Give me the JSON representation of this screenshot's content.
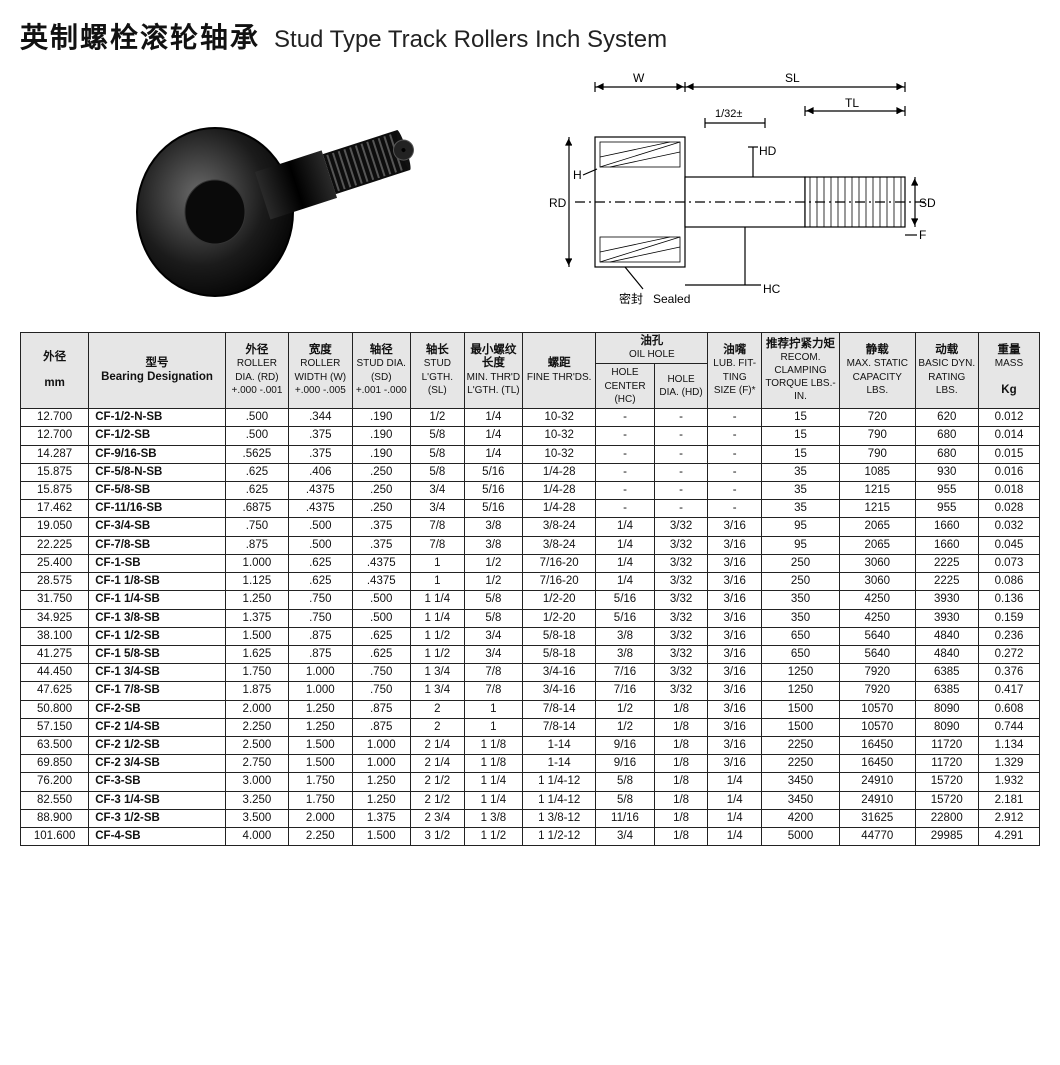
{
  "title": {
    "cn": "英制螺栓滚轮轴承",
    "en": "Stud Type Track Rollers Inch System"
  },
  "diagram_labels": [
    "W",
    "SL",
    "TL",
    "1/32±",
    "H",
    "RD",
    "HD",
    "SD",
    "F",
    "HC",
    "Sealed",
    "密封"
  ],
  "headers": {
    "mm": {
      "cn": "外径",
      "en": "mm"
    },
    "des": {
      "cn": "型号",
      "en": "Bearing Designation"
    },
    "rd": {
      "cn": "外径",
      "en": "ROLLER DIA. (RD)",
      "tol": "+.000\n-.001"
    },
    "w": {
      "cn": "宽度",
      "en": "ROLLER WIDTH (W)",
      "tol": "+.000\n-.005"
    },
    "sd": {
      "cn": "轴径",
      "en": "STUD DIA. (SD)",
      "tol": "+.001\n-.000"
    },
    "sl": {
      "cn": "轴长",
      "en": "STUD L'GTH. (SL)"
    },
    "tl": {
      "cn": "最小螺纹长度",
      "en": "MIN. THR'D L'GTH. (TL)"
    },
    "ft": {
      "cn": "螺距",
      "en": "FINE THR'DS."
    },
    "oil": {
      "cn": "油孔",
      "en": "OIL HOLE"
    },
    "hc": {
      "en": "HOLE CENTER (HC)"
    },
    "hd": {
      "en": "HOLE DIA. (HD)"
    },
    "f": {
      "cn": "油嘴",
      "en": "LUB. FIT- TING SIZE (F)*"
    },
    "tq": {
      "cn": "推荐拧紧力矩",
      "en": "RECOM. CLAMPING TORQUE LBS.- IN."
    },
    "stat": {
      "cn": "静载",
      "en": "MAX. STATIC CAPACITY LBS."
    },
    "dyn": {
      "cn": "动载",
      "en": "BASIC DYN. RATING LBS."
    },
    "mass": {
      "cn": "重量",
      "en": "MASS",
      "unit": "Kg"
    }
  },
  "rows": [
    {
      "mm": "12.700",
      "des": "CF-1/2-N-SB",
      "rd": ".500",
      "w": ".344",
      "sd": ".190",
      "sl": "1/2",
      "tl": "1/4",
      "ft": "10-32",
      "hc": "-",
      "hd": "-",
      "f": "-",
      "tq": "15",
      "stat": "720",
      "dyn": "620",
      "mass": "0.012"
    },
    {
      "mm": "12.700",
      "des": "CF-1/2-SB",
      "rd": ".500",
      "w": ".375",
      "sd": ".190",
      "sl": "5/8",
      "tl": "1/4",
      "ft": "10-32",
      "hc": "-",
      "hd": "-",
      "f": "-",
      "tq": "15",
      "stat": "790",
      "dyn": "680",
      "mass": "0.014"
    },
    {
      "mm": "14.287",
      "des": "CF-9/16-SB",
      "rd": ".5625",
      "w": ".375",
      "sd": ".190",
      "sl": "5/8",
      "tl": "1/4",
      "ft": "10-32",
      "hc": "-",
      "hd": "-",
      "f": "-",
      "tq": "15",
      "stat": "790",
      "dyn": "680",
      "mass": "0.015"
    },
    {
      "mm": "15.875",
      "des": "CF-5/8-N-SB",
      "rd": ".625",
      "w": ".406",
      "sd": ".250",
      "sl": "5/8",
      "tl": "5/16",
      "ft": "1/4-28",
      "hc": "-",
      "hd": "-",
      "f": "-",
      "tq": "35",
      "stat": "1085",
      "dyn": "930",
      "mass": "0.016"
    },
    {
      "mm": "15.875",
      "des": "CF-5/8-SB",
      "rd": ".625",
      "w": ".4375",
      "sd": ".250",
      "sl": "3/4",
      "tl": "5/16",
      "ft": "1/4-28",
      "hc": "-",
      "hd": "-",
      "f": "-",
      "tq": "35",
      "stat": "1215",
      "dyn": "955",
      "mass": "0.018"
    },
    {
      "mm": "17.462",
      "des": "CF-11/16-SB",
      "rd": ".6875",
      "w": ".4375",
      "sd": ".250",
      "sl": "3/4",
      "tl": "5/16",
      "ft": "1/4-28",
      "hc": "-",
      "hd": "-",
      "f": "-",
      "tq": "35",
      "stat": "1215",
      "dyn": "955",
      "mass": "0.028"
    },
    {
      "mm": "19.050",
      "des": "CF-3/4-SB",
      "rd": ".750",
      "w": ".500",
      "sd": ".375",
      "sl": "7/8",
      "tl": "3/8",
      "ft": "3/8-24",
      "hc": "1/4",
      "hd": "3/32",
      "f": "3/16",
      "tq": "95",
      "stat": "2065",
      "dyn": "1660",
      "mass": "0.032"
    },
    {
      "mm": "22.225",
      "des": "CF-7/8-SB",
      "rd": ".875",
      "w": ".500",
      "sd": ".375",
      "sl": "7/8",
      "tl": "3/8",
      "ft": "3/8-24",
      "hc": "1/4",
      "hd": "3/32",
      "f": "3/16",
      "tq": "95",
      "stat": "2065",
      "dyn": "1660",
      "mass": "0.045"
    },
    {
      "mm": "25.400",
      "des": "CF-1-SB",
      "rd": "1.000",
      "w": ".625",
      "sd": ".4375",
      "sl": "1",
      "tl": "1/2",
      "ft": "7/16-20",
      "hc": "1/4",
      "hd": "3/32",
      "f": "3/16",
      "tq": "250",
      "stat": "3060",
      "dyn": "2225",
      "mass": "0.073"
    },
    {
      "mm": "28.575",
      "des": "CF-1 1/8-SB",
      "rd": "1.125",
      "w": ".625",
      "sd": ".4375",
      "sl": "1",
      "tl": "1/2",
      "ft": "7/16-20",
      "hc": "1/4",
      "hd": "3/32",
      "f": "3/16",
      "tq": "250",
      "stat": "3060",
      "dyn": "2225",
      "mass": "0.086"
    },
    {
      "mm": "31.750",
      "des": "CF-1 1/4-SB",
      "rd": "1.250",
      "w": ".750",
      "sd": ".500",
      "sl": "1 1/4",
      "tl": "5/8",
      "ft": "1/2-20",
      "hc": "5/16",
      "hd": "3/32",
      "f": "3/16",
      "tq": "350",
      "stat": "4250",
      "dyn": "3930",
      "mass": "0.136"
    },
    {
      "mm": "34.925",
      "des": "CF-1 3/8-SB",
      "rd": "1.375",
      "w": ".750",
      "sd": ".500",
      "sl": "1 1/4",
      "tl": "5/8",
      "ft": "1/2-20",
      "hc": "5/16",
      "hd": "3/32",
      "f": "3/16",
      "tq": "350",
      "stat": "4250",
      "dyn": "3930",
      "mass": "0.159"
    },
    {
      "mm": "38.100",
      "des": "CF-1 1/2-SB",
      "rd": "1.500",
      "w": ".875",
      "sd": ".625",
      "sl": "1 1/2",
      "tl": "3/4",
      "ft": "5/8-18",
      "hc": "3/8",
      "hd": "3/32",
      "f": "3/16",
      "tq": "650",
      "stat": "5640",
      "dyn": "4840",
      "mass": "0.236"
    },
    {
      "mm": "41.275",
      "des": "CF-1 5/8-SB",
      "rd": "1.625",
      "w": ".875",
      "sd": ".625",
      "sl": "1 1/2",
      "tl": "3/4",
      "ft": "5/8-18",
      "hc": "3/8",
      "hd": "3/32",
      "f": "3/16",
      "tq": "650",
      "stat": "5640",
      "dyn": "4840",
      "mass": "0.272"
    },
    {
      "mm": "44.450",
      "des": "CF-1 3/4-SB",
      "rd": "1.750",
      "w": "1.000",
      "sd": ".750",
      "sl": "1 3/4",
      "tl": "7/8",
      "ft": "3/4-16",
      "hc": "7/16",
      "hd": "3/32",
      "f": "3/16",
      "tq": "1250",
      "stat": "7920",
      "dyn": "6385",
      "mass": "0.376"
    },
    {
      "mm": "47.625",
      "des": "CF-1 7/8-SB",
      "rd": "1.875",
      "w": "1.000",
      "sd": ".750",
      "sl": "1 3/4",
      "tl": "7/8",
      "ft": "3/4-16",
      "hc": "7/16",
      "hd": "3/32",
      "f": "3/16",
      "tq": "1250",
      "stat": "7920",
      "dyn": "6385",
      "mass": "0.417"
    },
    {
      "mm": "50.800",
      "des": "CF-2-SB",
      "rd": "2.000",
      "w": "1.250",
      "sd": ".875",
      "sl": "2",
      "tl": "1",
      "ft": "7/8-14",
      "hc": "1/2",
      "hd": "1/8",
      "f": "3/16",
      "tq": "1500",
      "stat": "10570",
      "dyn": "8090",
      "mass": "0.608"
    },
    {
      "mm": "57.150",
      "des": "CF-2 1/4-SB",
      "rd": "2.250",
      "w": "1.250",
      "sd": ".875",
      "sl": "2",
      "tl": "1",
      "ft": "7/8-14",
      "hc": "1/2",
      "hd": "1/8",
      "f": "3/16",
      "tq": "1500",
      "stat": "10570",
      "dyn": "8090",
      "mass": "0.744"
    },
    {
      "mm": "63.500",
      "des": "CF-2 1/2-SB",
      "rd": "2.500",
      "w": "1.500",
      "sd": "1.000",
      "sl": "2 1/4",
      "tl": "1 1/8",
      "ft": "1-14",
      "hc": "9/16",
      "hd": "1/8",
      "f": "3/16",
      "tq": "2250",
      "stat": "16450",
      "dyn": "11720",
      "mass": "1.134"
    },
    {
      "mm": "69.850",
      "des": "CF-2 3/4-SB",
      "rd": "2.750",
      "w": "1.500",
      "sd": "1.000",
      "sl": "2 1/4",
      "tl": "1 1/8",
      "ft": "1-14",
      "hc": "9/16",
      "hd": "1/8",
      "f": "3/16",
      "tq": "2250",
      "stat": "16450",
      "dyn": "11720",
      "mass": "1.329"
    },
    {
      "mm": "76.200",
      "des": "CF-3-SB",
      "rd": "3.000",
      "w": "1.750",
      "sd": "1.250",
      "sl": "2 1/2",
      "tl": "1 1/4",
      "ft": "1 1/4-12",
      "hc": "5/8",
      "hd": "1/8",
      "f": "1/4",
      "tq": "3450",
      "stat": "24910",
      "dyn": "15720",
      "mass": "1.932"
    },
    {
      "mm": "82.550",
      "des": "CF-3 1/4-SB",
      "rd": "3.250",
      "w": "1.750",
      "sd": "1.250",
      "sl": "2 1/2",
      "tl": "1 1/4",
      "ft": "1 1/4-12",
      "hc": "5/8",
      "hd": "1/8",
      "f": "1/4",
      "tq": "3450",
      "stat": "24910",
      "dyn": "15720",
      "mass": "2.181"
    },
    {
      "mm": "88.900",
      "des": "CF-3 1/2-SB",
      "rd": "3.500",
      "w": "2.000",
      "sd": "1.375",
      "sl": "2 3/4",
      "tl": "1 3/8",
      "ft": "1 3/8-12",
      "hc": "11/16",
      "hd": "1/8",
      "f": "1/4",
      "tq": "4200",
      "stat": "31625",
      "dyn": "22800",
      "mass": "2.912"
    },
    {
      "mm": "101.600",
      "des": "CF-4-SB",
      "rd": "4.000",
      "w": "2.250",
      "sd": "1.500",
      "sl": "3 1/2",
      "tl": "1 1/2",
      "ft": "1 1/2-12",
      "hc": "3/4",
      "hd": "1/8",
      "f": "1/4",
      "tq": "5000",
      "stat": "44770",
      "dyn": "29985",
      "mass": "4.291"
    }
  ],
  "colors": {
    "header_bg": "#e6e6e6",
    "border": "#222222",
    "text": "#111111"
  }
}
